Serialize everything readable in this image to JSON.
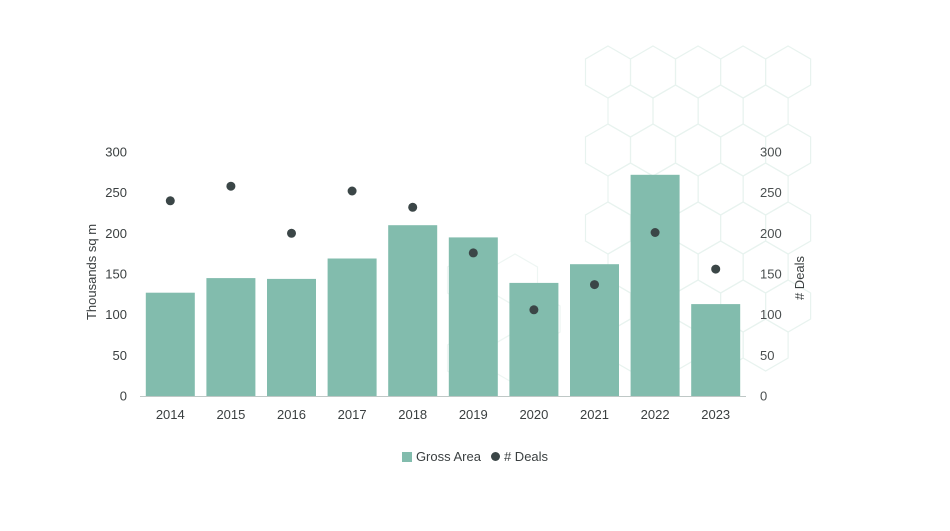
{
  "chart_data": {
    "type": "bar",
    "categories": [
      "2014",
      "2015",
      "2016",
      "2017",
      "2018",
      "2019",
      "2020",
      "2021",
      "2022",
      "2023"
    ],
    "series": [
      {
        "name": "Gross Area",
        "type": "bar",
        "axis": "left",
        "color": "#82bcad",
        "values": [
          127,
          145,
          144,
          169,
          210,
          195,
          139,
          162,
          272,
          113
        ]
      },
      {
        "name": "# Deals",
        "type": "scatter",
        "axis": "right",
        "color": "#3b4647",
        "values": [
          240,
          258,
          200,
          252,
          232,
          176,
          106,
          137,
          201,
          156
        ]
      }
    ],
    "ylabel": "Thousands sq m",
    "y2label": "# Deals",
    "ylim": [
      0,
      300
    ],
    "y2lim": [
      0,
      300
    ],
    "yticks": [
      "0",
      "50",
      "100",
      "150",
      "200",
      "250",
      "300"
    ],
    "y2ticks": [
      "0",
      "50",
      "100",
      "150",
      "200",
      "250",
      "300"
    ],
    "grid": false,
    "legend_position": "bottom-center"
  }
}
